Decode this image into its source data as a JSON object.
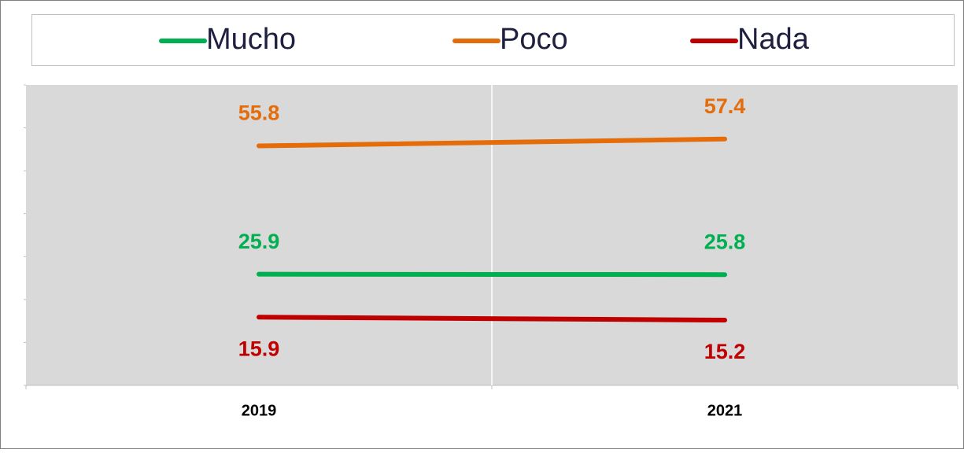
{
  "chart_data": {
    "type": "line",
    "categories": [
      "2019",
      "2021"
    ],
    "series": [
      {
        "name": "Mucho",
        "color": "#00b050",
        "values": [
          25.9,
          25.8
        ]
      },
      {
        "name": "Poco",
        "color": "#e46c0a",
        "values": [
          55.8,
          57.4
        ]
      },
      {
        "name": "Nada",
        "color": "#c00000",
        "values": [
          15.9,
          15.2
        ]
      }
    ],
    "ylim": [
      0,
      70
    ],
    "yticks": [
      0,
      10,
      20,
      30,
      40,
      50,
      60,
      70
    ]
  }
}
